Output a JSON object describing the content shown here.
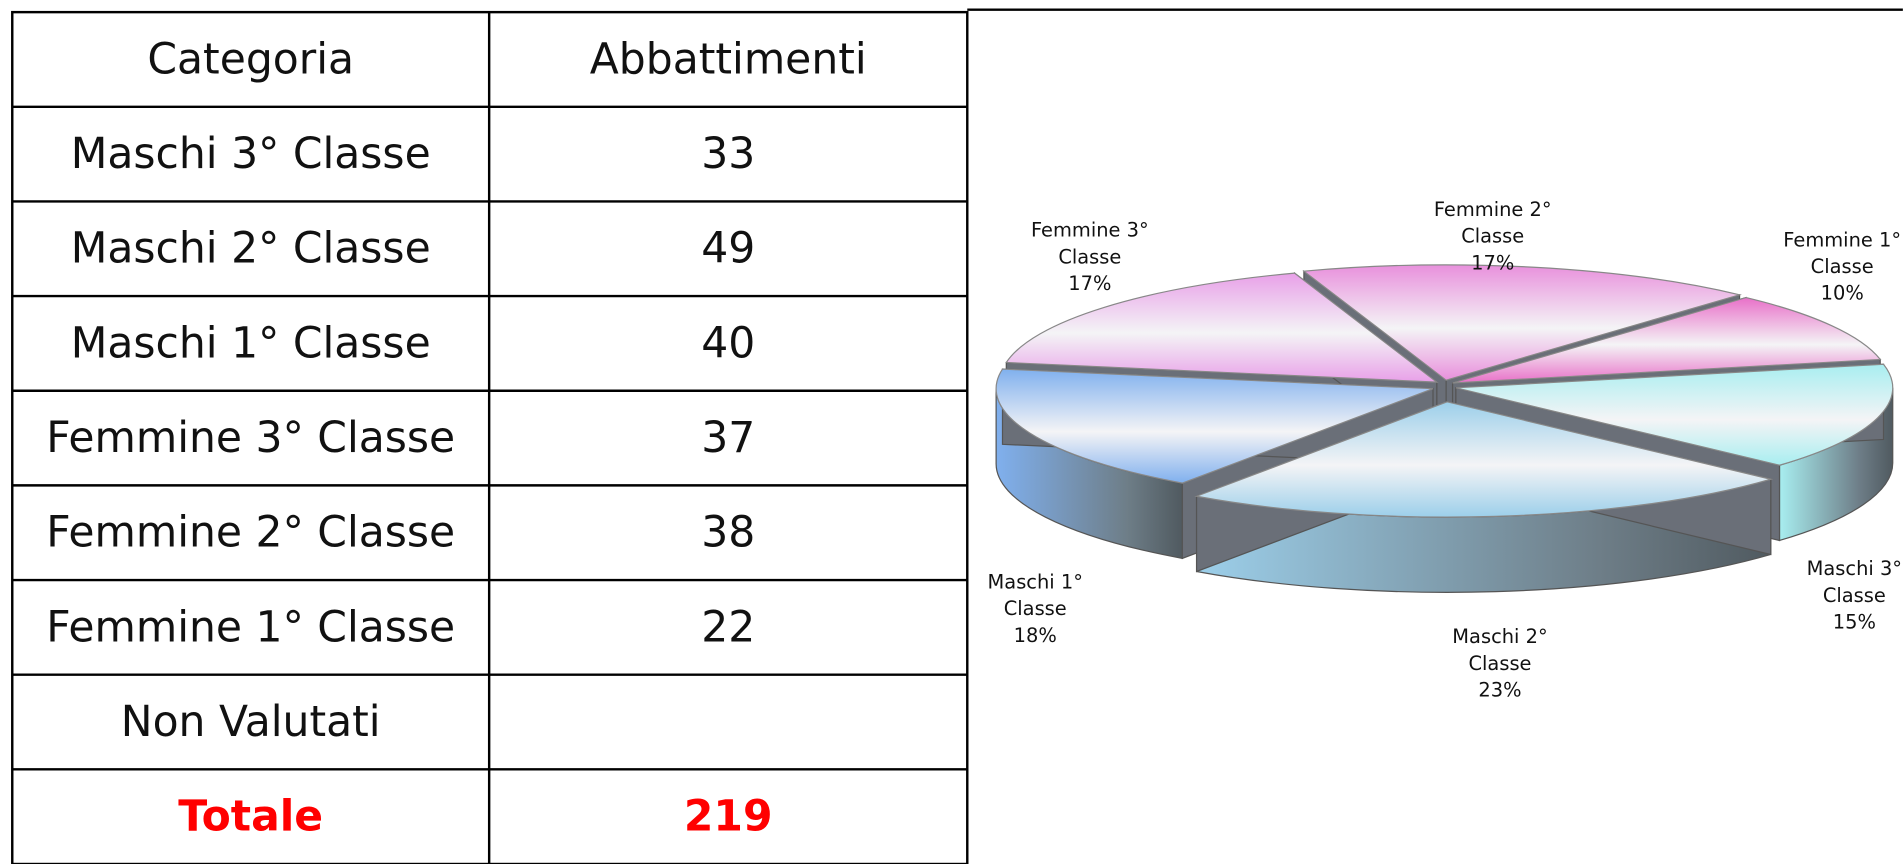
{
  "table": {
    "header": [
      "Categoria",
      "Abbattimenti"
    ],
    "rows": [
      [
        "Maschi 3° Classe",
        33
      ],
      [
        "Maschi 2° Classe",
        49
      ],
      [
        "Maschi 1° Classe",
        40
      ],
      [
        "Femmine 3° Classe",
        37
      ],
      [
        "Femmine 2° Classe",
        38
      ],
      [
        "Femmine 1° Classe",
        22
      ],
      [
        "Non Valutati",
        null
      ]
    ],
    "total": [
      "Totale",
      219
    ]
  },
  "chart_data": {
    "type": "pie",
    "categories": [
      "Femmine 2° Classe",
      "Femmine 1° Classe",
      "Maschi 3° Classe",
      "Maschi 2° Classe",
      "Maschi 1° Classe",
      "Femmine 3° Classe"
    ],
    "values": [
      17,
      10,
      15,
      23,
      18,
      17
    ],
    "value_labels": [
      "17%",
      "10%",
      "15%",
      "23%",
      "18%",
      "17%"
    ],
    "colors": [
      "#e890dc",
      "#e870c8",
      "#a8eef0",
      "#9ccfea",
      "#80b0ee",
      "#e8a0e8"
    ]
  }
}
